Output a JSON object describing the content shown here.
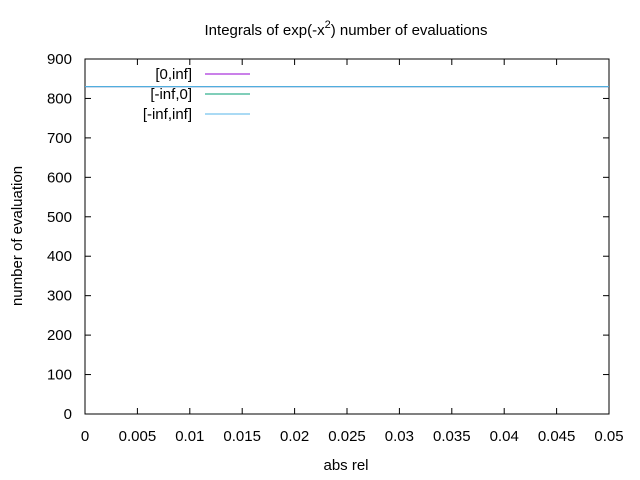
{
  "chart_data": {
    "type": "line",
    "title": {
      "prefix": "Integrals of exp(-x",
      "superscript": "2",
      "suffix": ") number of evaluations"
    },
    "xlabel": "abs rel",
    "ylabel": "number of evaluation",
    "xlim": [
      0,
      0.05
    ],
    "ylim": [
      0,
      900
    ],
    "xticks": [
      "0",
      "0.005",
      "0.01",
      "0.015",
      "0.02",
      "0.025",
      "0.03",
      "0.035",
      "0.04",
      "0.045",
      "0.05"
    ],
    "yticks": [
      "0",
      "100",
      "200",
      "300",
      "400",
      "500",
      "600",
      "700",
      "800",
      "900"
    ],
    "grid": false,
    "legend_position": "top-left",
    "series": [
      {
        "name": "[0,inf]",
        "color": "#9400d3",
        "x": [
          0,
          0.05
        ],
        "y": [
          830,
          830
        ]
      },
      {
        "name": "[-inf,0]",
        "color": "#009e73",
        "x": [
          0,
          0.05
        ],
        "y": [
          830,
          830
        ]
      },
      {
        "name": "[-inf,inf]",
        "color": "#56b4e9",
        "x": [
          0,
          0.05
        ],
        "y": [
          830,
          830
        ]
      }
    ]
  }
}
